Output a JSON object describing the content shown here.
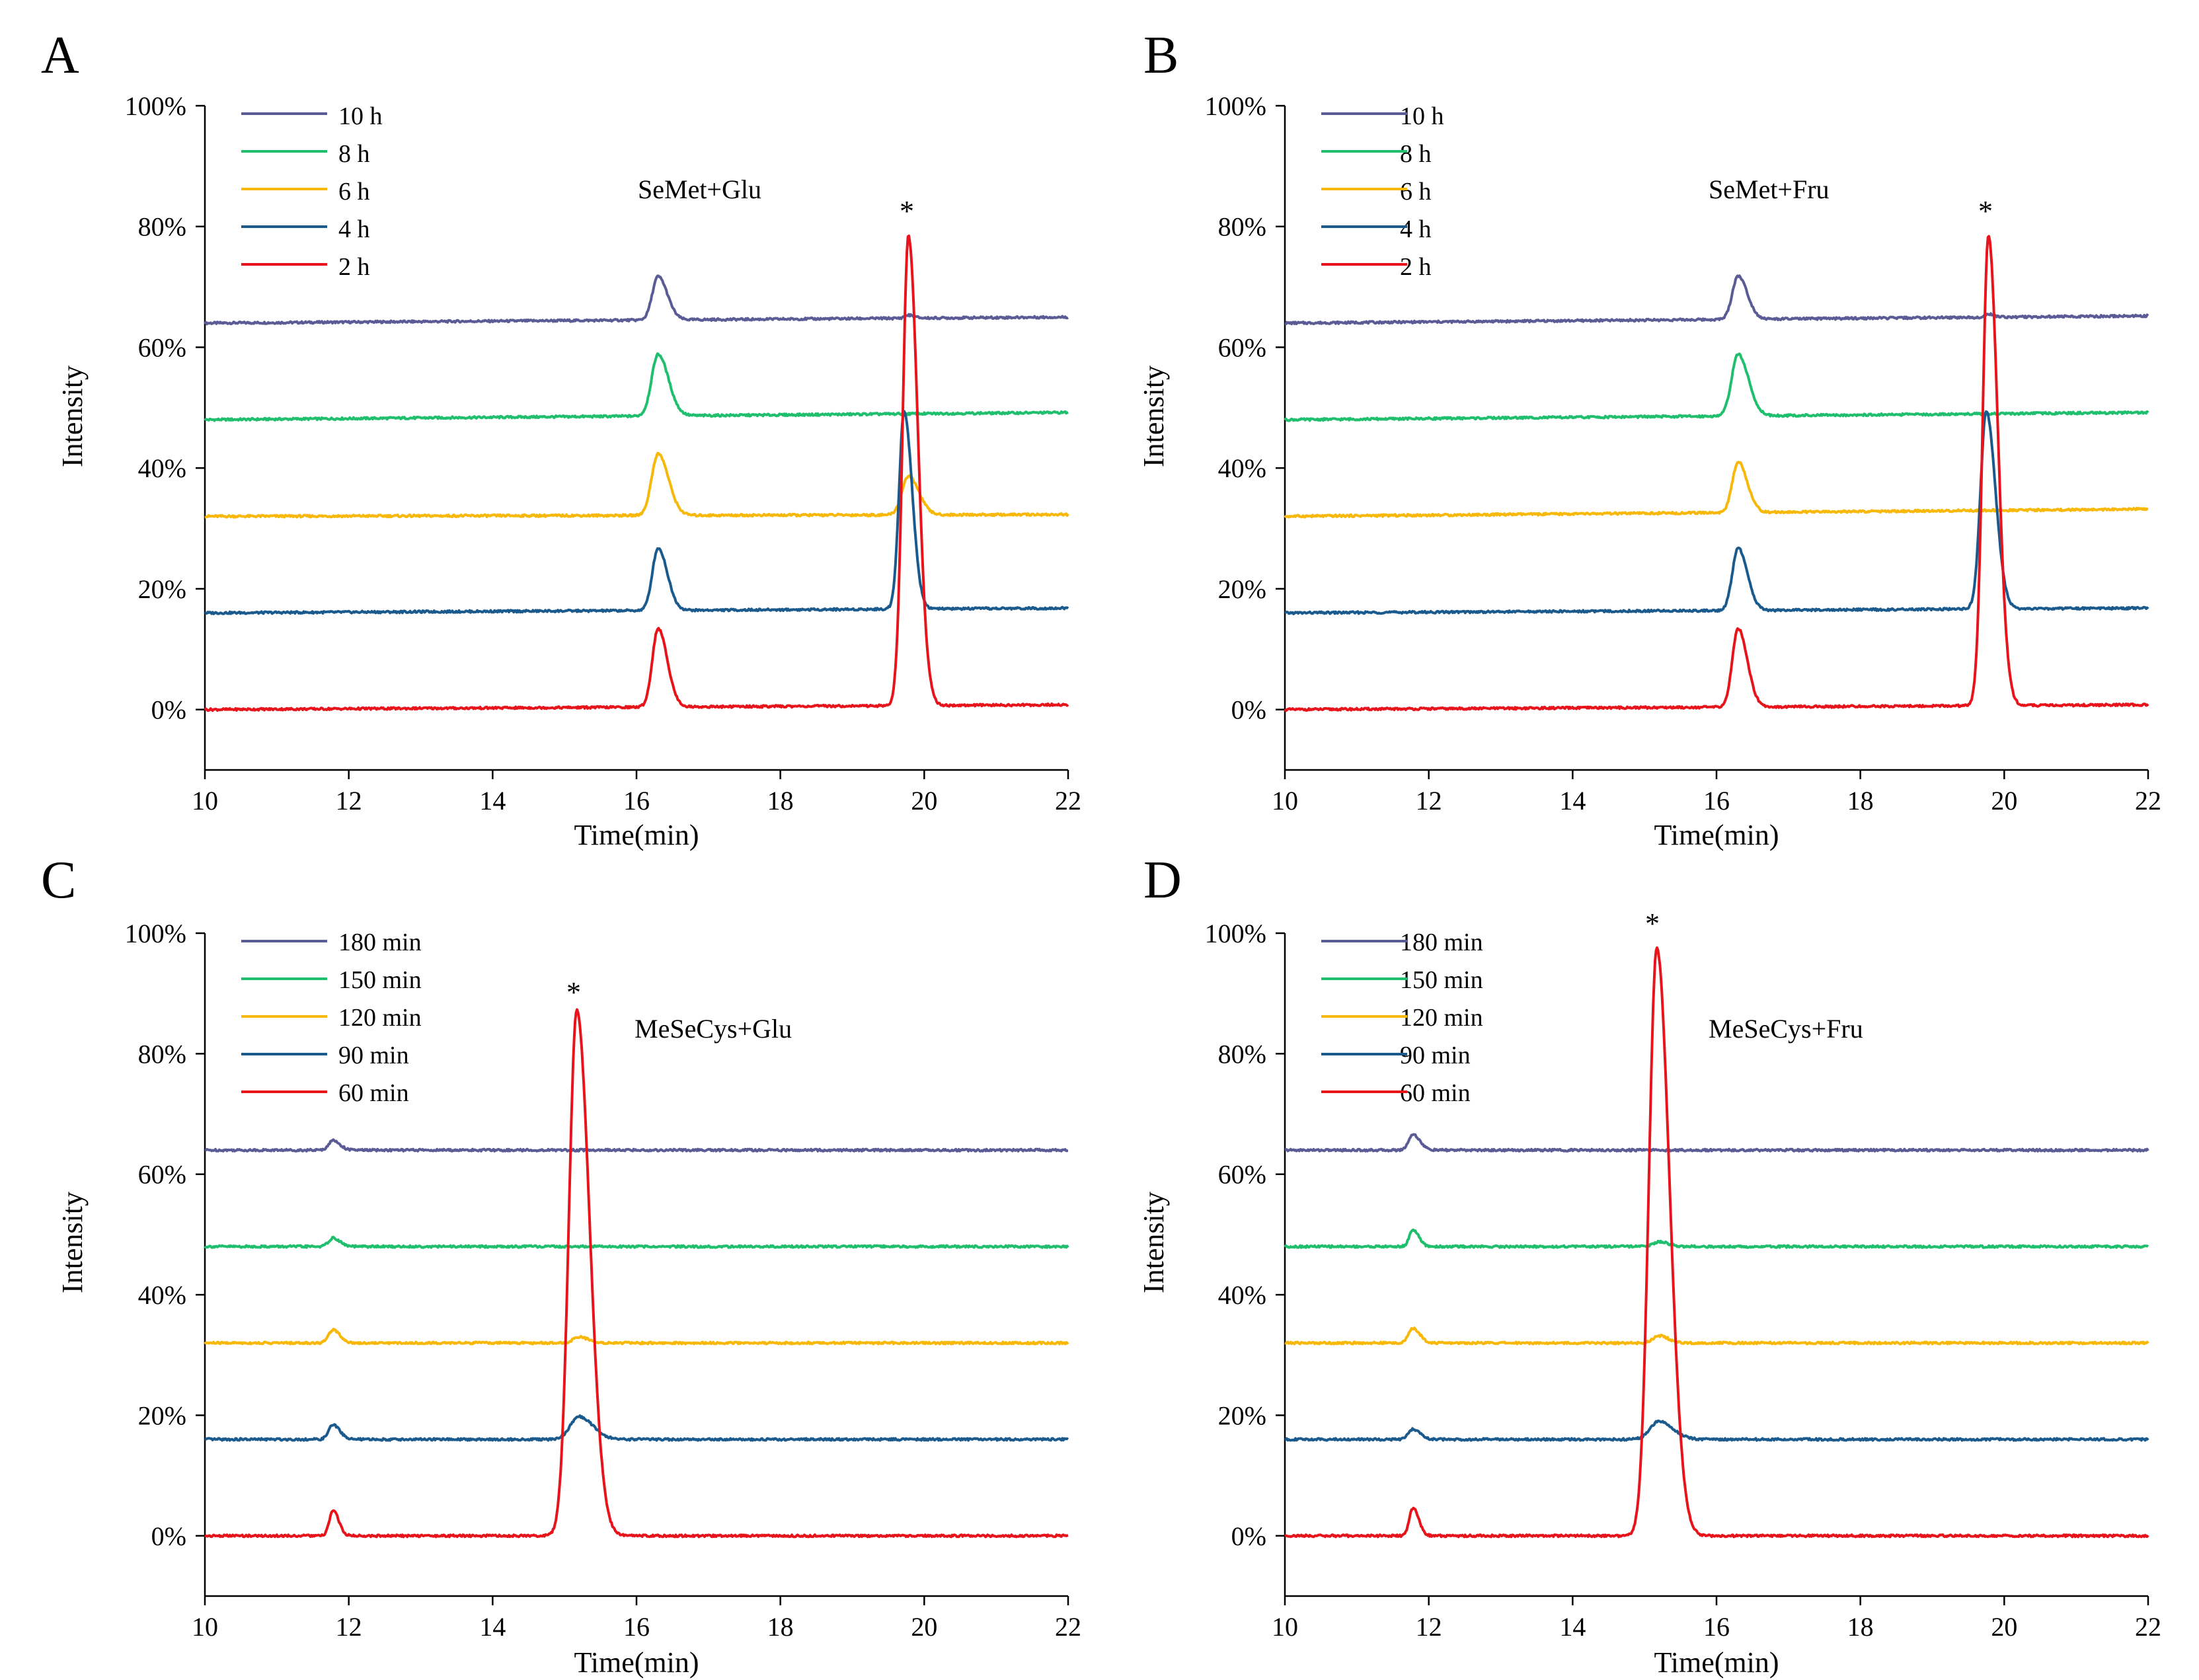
{
  "panels": [
    {
      "letter": "A",
      "chart_data": {
        "type": "line",
        "annotation": "SeMet+Glu",
        "xlabel": "Time(min)",
        "ylabel": "Intensity",
        "xlim": [
          10,
          22
        ],
        "ylim": [
          -10,
          100
        ],
        "xticks": [
          10,
          12,
          14,
          16,
          18,
          20,
          22
        ],
        "yticks": [
          0,
          20,
          40,
          60,
          80,
          100
        ],
        "ytick_labels": [
          "0%",
          "20%",
          "40%",
          "60%",
          "80%",
          "100%"
        ],
        "legend_position": "top-left",
        "star": {
          "label": "*",
          "x": 19.78,
          "y": 79.5
        },
        "series": [
          {
            "name": "10 h",
            "color": "#5b5b96",
            "baseline": 64,
            "drift": 1,
            "peaks": [
              [
                16.3,
                7.2,
                0.08
              ],
              [
                19.78,
                0.5,
                0.05
              ]
            ]
          },
          {
            "name": "8 h",
            "color": "#1fbf6e",
            "baseline": 48,
            "drift": 1.2,
            "peaks": [
              [
                16.3,
                10.2,
                0.09
              ]
            ]
          },
          {
            "name": "6 h",
            "color": "#f7b80a",
            "baseline": 32,
            "drift": 0.3,
            "peaks": [
              [
                16.3,
                10.2,
                0.09
              ],
              [
                19.78,
                6.4,
                0.09
              ]
            ]
          },
          {
            "name": "4 h",
            "color": "#1b5a8c",
            "baseline": 16,
            "drift": 0.8,
            "peaks": [
              [
                16.3,
                10.3,
                0.08
              ],
              [
                19.72,
                32.7,
                0.07
              ]
            ]
          },
          {
            "name": "2 h",
            "color": "#e8141c",
            "baseline": 0,
            "drift": 0.8,
            "peaks": [
              [
                16.3,
                13,
                0.08
              ],
              [
                19.78,
                77.8,
                0.08
              ]
            ]
          }
        ]
      }
    },
    {
      "letter": "B",
      "chart_data": {
        "type": "line",
        "annotation": "SeMet+Fru",
        "xlabel": "Time(min)",
        "ylabel": "Intensity",
        "xlim": [
          10,
          22
        ],
        "ylim": [
          -10,
          100
        ],
        "xticks": [
          10,
          12,
          14,
          16,
          18,
          20,
          22
        ],
        "yticks": [
          0,
          20,
          40,
          60,
          80,
          100
        ],
        "ytick_labels": [
          "0%",
          "20%",
          "40%",
          "60%",
          "80%",
          "100%"
        ],
        "legend_position": "top-left",
        "star": {
          "label": "*",
          "x": 19.78,
          "y": 79.5
        },
        "series": [
          {
            "name": "10 h",
            "color": "#5b5b96",
            "baseline": 64,
            "drift": 1.2,
            "peaks": [
              [
                16.3,
                7.2,
                0.08
              ],
              [
                19.78,
                0.5,
                0.05
              ]
            ]
          },
          {
            "name": "8 h",
            "color": "#1fbf6e",
            "baseline": 48,
            "drift": 1.2,
            "peaks": [
              [
                16.3,
                10.2,
                0.09
              ]
            ]
          },
          {
            "name": "6 h",
            "color": "#f7b80a",
            "baseline": 32,
            "drift": 1.2,
            "peaks": [
              [
                16.3,
                8.4,
                0.08
              ]
            ]
          },
          {
            "name": "4 h",
            "color": "#1b5a8c",
            "baseline": 16,
            "drift": 0.8,
            "peaks": [
              [
                16.3,
                10.3,
                0.08
              ],
              [
                19.75,
                32.7,
                0.08
              ]
            ]
          },
          {
            "name": "2 h",
            "color": "#e8141c",
            "baseline": 0,
            "drift": 0.8,
            "peaks": [
              [
                16.3,
                13,
                0.08
              ],
              [
                19.78,
                77.8,
                0.08
              ]
            ]
          }
        ]
      }
    },
    {
      "letter": "C",
      "chart_data": {
        "type": "line",
        "annotation": "MeSeCys+Glu",
        "xlabel": "Time(min)",
        "ylabel": "Intensity",
        "xlim": [
          10,
          22
        ],
        "ylim": [
          -10,
          100
        ],
        "xticks": [
          10,
          12,
          14,
          16,
          18,
          20,
          22
        ],
        "yticks": [
          0,
          20,
          40,
          60,
          80,
          100
        ],
        "ytick_labels": [
          "0%",
          "20%",
          "40%",
          "60%",
          "80%",
          "100%"
        ],
        "legend_position": "top-left",
        "star": {
          "label": "*",
          "x": 15.17,
          "y": 89.5
        },
        "series": [
          {
            "name": "180 min",
            "color": "#5b5b96",
            "baseline": 64,
            "drift": 0,
            "peaks": [
              [
                11.78,
                1.6,
                0.06
              ]
            ]
          },
          {
            "name": "150 min",
            "color": "#1fbf6e",
            "baseline": 48,
            "drift": 0,
            "peaks": [
              [
                11.78,
                1.4,
                0.06
              ]
            ]
          },
          {
            "name": "120 min",
            "color": "#f7b80a",
            "baseline": 32,
            "drift": 0,
            "peaks": [
              [
                11.78,
                2.2,
                0.06
              ],
              [
                15.2,
                1,
                0.08
              ]
            ]
          },
          {
            "name": "90 min",
            "color": "#1b5a8c",
            "baseline": 16,
            "drift": 0,
            "peaks": [
              [
                11.78,
                2.4,
                0.06
              ],
              [
                15.2,
                3.8,
                0.12
              ]
            ]
          },
          {
            "name": "60 min",
            "color": "#e8141c",
            "baseline": 0,
            "drift": 0,
            "peaks": [
              [
                11.78,
                4.2,
                0.05
              ],
              [
                15.17,
                87.2,
                0.11
              ]
            ]
          }
        ]
      }
    },
    {
      "letter": "D",
      "chart_data": {
        "type": "line",
        "annotation": "MeSeCys+Fru",
        "xlabel": "Time(min)",
        "ylabel": "Intensity",
        "xlim": [
          10,
          22
        ],
        "ylim": [
          -10,
          100
        ],
        "xticks": [
          10,
          12,
          14,
          16,
          18,
          20,
          22
        ],
        "yticks": [
          0,
          20,
          40,
          60,
          80,
          100
        ],
        "ytick_labels": [
          "0%",
          "20%",
          "40%",
          "60%",
          "80%",
          "100%"
        ],
        "legend_position": "top-left",
        "star": {
          "label": "*",
          "x": 15.17,
          "y": 99.8
        },
        "series": [
          {
            "name": "180 min",
            "color": "#5b5b96",
            "baseline": 64,
            "drift": 0,
            "peaks": [
              [
                11.78,
                2.6,
                0.06
              ]
            ]
          },
          {
            "name": "150 min",
            "color": "#1fbf6e",
            "baseline": 48,
            "drift": 0,
            "peaks": [
              [
                11.78,
                2.8,
                0.05
              ],
              [
                15.2,
                0.8,
                0.08
              ]
            ]
          },
          {
            "name": "120 min",
            "color": "#f7b80a",
            "baseline": 32,
            "drift": 0,
            "peaks": [
              [
                11.78,
                2.4,
                0.06
              ],
              [
                15.2,
                1.2,
                0.08
              ]
            ]
          },
          {
            "name": "90 min",
            "color": "#1b5a8c",
            "baseline": 16,
            "drift": 0,
            "peaks": [
              [
                11.78,
                1.7,
                0.06
              ],
              [
                15.2,
                3,
                0.12
              ]
            ]
          },
          {
            "name": "60 min",
            "color": "#e8141c",
            "baseline": 0,
            "drift": 0,
            "peaks": [
              [
                11.78,
                4.6,
                0.05
              ],
              [
                15.17,
                97.6,
                0.11
              ]
            ]
          }
        ]
      }
    }
  ]
}
